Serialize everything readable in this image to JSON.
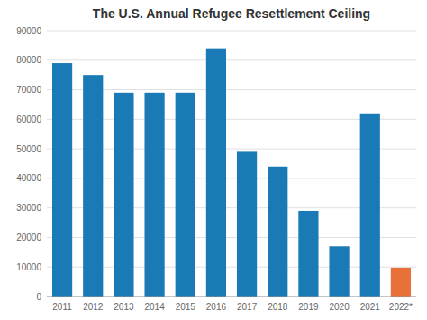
{
  "chart_data": {
    "type": "bar",
    "title": "The U.S. Annual Refugee Resettlement Ceiling",
    "categories": [
      "2011",
      "2012",
      "2013",
      "2014",
      "2015",
      "2016",
      "2017",
      "2018",
      "2019",
      "2020",
      "2021",
      "2022*"
    ],
    "values": [
      79000,
      75000,
      69000,
      69000,
      69000,
      84000,
      49000,
      44000,
      29000,
      17000,
      62000,
      9800
    ],
    "colors": [
      "#1a7ab5",
      "#1a7ab5",
      "#1a7ab5",
      "#1a7ab5",
      "#1a7ab5",
      "#1a7ab5",
      "#1a7ab5",
      "#1a7ab5",
      "#1a7ab5",
      "#1a7ab5",
      "#1a7ab5",
      "#e8703a"
    ],
    "ylim": [
      0,
      90000
    ],
    "yticks": [
      0,
      10000,
      20000,
      30000,
      40000,
      50000,
      60000,
      70000,
      80000,
      90000
    ],
    "grid": true
  }
}
